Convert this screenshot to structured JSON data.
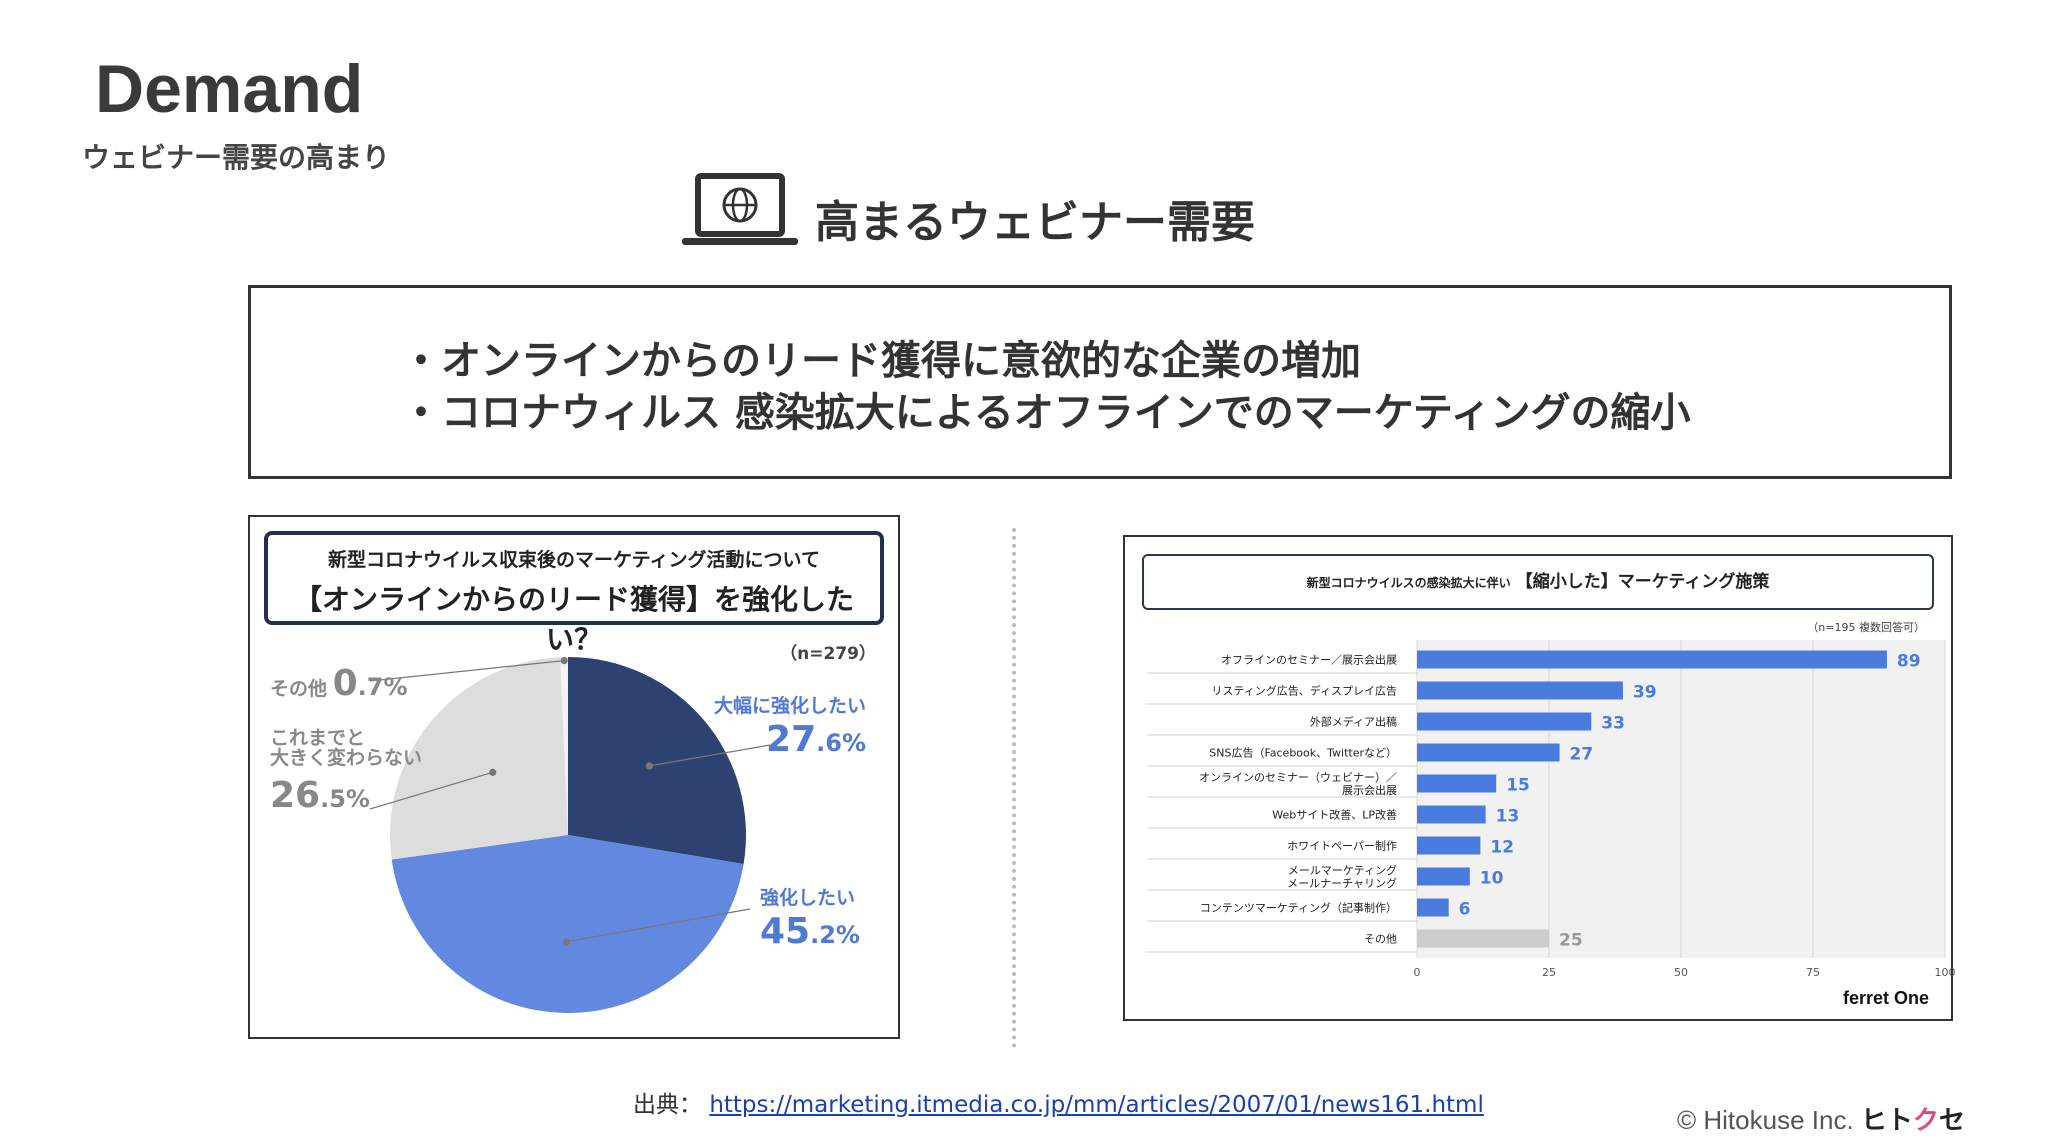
{
  "header": {
    "title": "Demand",
    "subtitle": "ウェビナー需要の高まり",
    "icon": "laptop-globe-icon",
    "heading": "高まるウェビナー需要"
  },
  "bullets": [
    "・オンラインからのリード獲得に意欲的な企業の増加",
    "・コロナウィルス 感染拡大によるオフラインでのマーケティングの縮小"
  ],
  "pie_panel": {
    "header_line1": "新型コロナウイルス収束後のマーケティング活動について",
    "header_line2": "【オンラインからのリード獲得】を強化したい？",
    "sample": "（n=279）"
  },
  "bar_panel": {
    "header_small": "新型コロナウイルスの感染拡大に伴い",
    "header_big": "【縮小した】マーケティング施策",
    "sample": "（n=195 複数回答可）",
    "brand": "ferret One"
  },
  "chart_data": [
    {
      "type": "pie",
      "slices": [
        {
          "label": "大幅に強化したい",
          "value": 27.6,
          "value_int": "27",
          "value_dec": ".6%",
          "color": "#2e4272"
        },
        {
          "label": "強化したい",
          "value": 45.2,
          "value_int": "45",
          "value_dec": ".2%",
          "color": "#6388df"
        },
        {
          "label": "これまでと\n大きく変わらない",
          "label_line1": "これまでと",
          "label_line2": "大きく変わらない",
          "value": 26.5,
          "value_int": "26",
          "value_dec": ".5%",
          "color": "#dddddd"
        },
        {
          "label": "その他",
          "value": 0.7,
          "value_int": "0",
          "value_dec": ".7%",
          "color": "#f2f2f2"
        }
      ]
    },
    {
      "type": "bar",
      "orientation": "horizontal",
      "categories": [
        "オフラインのセミナー／展示会出展",
        "リスティング広告、ディスプレイ広告",
        "外部メディア出稿",
        "SNS広告（Facebook、Twitterなど）",
        "オンラインのセミナー（ウェビナー）／\n展示会出展",
        "Webサイト改善、LP改善",
        "ホワイトペーパー制作",
        "メールマーケティング\nメールナーチャリング",
        "コンテンツマーケティング（記事制作）",
        "その他"
      ],
      "values": [
        89,
        39,
        33,
        27,
        15,
        13,
        12,
        10,
        6,
        25
      ],
      "colors": [
        "#4a7bdf",
        "#4a7bdf",
        "#4a7bdf",
        "#4a7bdf",
        "#4a7bdf",
        "#4a7bdf",
        "#4a7bdf",
        "#4a7bdf",
        "#4a7bdf",
        "#cccccc"
      ],
      "xlim": [
        0,
        100
      ],
      "xticks": [
        0,
        25,
        50,
        75,
        100
      ]
    }
  ],
  "footer": {
    "source_label": "出典：",
    "source_url": "https://marketing.itmedia.co.jp/mm/articles/2007/01/news161.html",
    "copyright": "© Hitokuse Inc.",
    "brand_a": "ヒト",
    "brand_b": "ク",
    "brand_c": "セ"
  }
}
